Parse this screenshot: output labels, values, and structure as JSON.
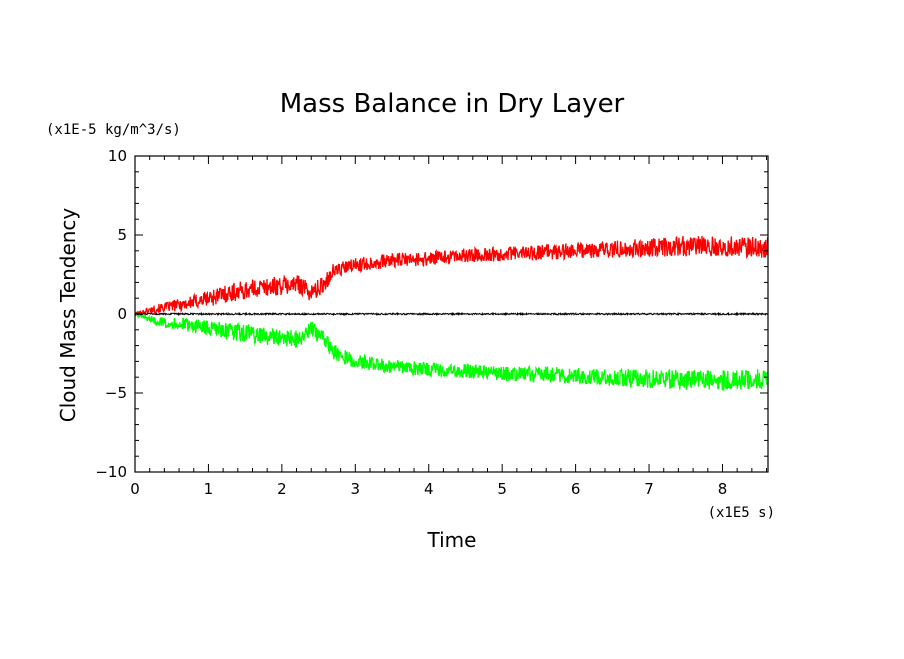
{
  "chart_data": {
    "type": "line",
    "title": "Mass Balance in Dry Layer",
    "xlabel": "Time",
    "ylabel": "Cloud Mass Tendency",
    "x_unit": "(x1E5 s)",
    "y_unit": "(x1E-5 kg/m^3/s)",
    "xlim": [
      0,
      8.62
    ],
    "ylim": [
      -10,
      10
    ],
    "x_ticks": [
      "0",
      "1",
      "2",
      "3",
      "4",
      "5",
      "6",
      "7",
      "8"
    ],
    "y_ticks": [
      "-10",
      "-5",
      "0",
      "5",
      "10"
    ],
    "grid": false,
    "legend": "none",
    "series": [
      {
        "color": "#ff0000",
        "x": [
          0,
          0.25,
          0.5,
          0.75,
          1.0,
          1.25,
          1.5,
          1.75,
          2.0,
          2.25,
          2.4,
          2.55,
          2.7,
          3.0,
          3.5,
          4.0,
          4.5,
          5.0,
          5.5,
          6.0,
          6.5,
          7.0,
          7.5,
          8.0,
          8.62
        ],
        "values": [
          0,
          0.3,
          0.5,
          0.7,
          1.0,
          1.3,
          1.5,
          1.7,
          1.8,
          1.9,
          1.3,
          1.8,
          2.7,
          3.1,
          3.4,
          3.5,
          3.7,
          3.8,
          3.9,
          4.0,
          4.1,
          4.2,
          4.3,
          4.3,
          4.2
        ],
        "noise": [
          0.1,
          0.25,
          0.35,
          0.45,
          0.55,
          0.6,
          0.6,
          0.6,
          0.6,
          0.6,
          0.6,
          0.55,
          0.5,
          0.45,
          0.45,
          0.45,
          0.45,
          0.45,
          0.5,
          0.5,
          0.55,
          0.6,
          0.65,
          0.65,
          0.65
        ]
      },
      {
        "color": "#00ff00",
        "x": [
          0,
          0.25,
          0.5,
          0.75,
          1.0,
          1.25,
          1.5,
          1.75,
          2.0,
          2.25,
          2.4,
          2.55,
          2.7,
          3.0,
          3.5,
          4.0,
          4.5,
          5.0,
          5.5,
          6.0,
          6.5,
          7.0,
          7.5,
          8.0,
          8.62
        ],
        "values": [
          0,
          -0.4,
          -0.6,
          -0.7,
          -0.9,
          -1.1,
          -1.2,
          -1.4,
          -1.5,
          -1.6,
          -1.0,
          -1.4,
          -2.4,
          -3.0,
          -3.3,
          -3.5,
          -3.6,
          -3.8,
          -3.8,
          -3.9,
          -4.0,
          -4.1,
          -4.2,
          -4.2,
          -4.1
        ],
        "noise": [
          0.1,
          0.25,
          0.35,
          0.45,
          0.5,
          0.55,
          0.55,
          0.55,
          0.55,
          0.55,
          0.55,
          0.5,
          0.5,
          0.45,
          0.45,
          0.45,
          0.45,
          0.45,
          0.5,
          0.5,
          0.55,
          0.6,
          0.65,
          0.65,
          0.65
        ]
      },
      {
        "color": "#000000",
        "x": [
          0,
          8.62
        ],
        "values": [
          0,
          0
        ],
        "noise": [
          0.05,
          0.05
        ]
      }
    ]
  }
}
